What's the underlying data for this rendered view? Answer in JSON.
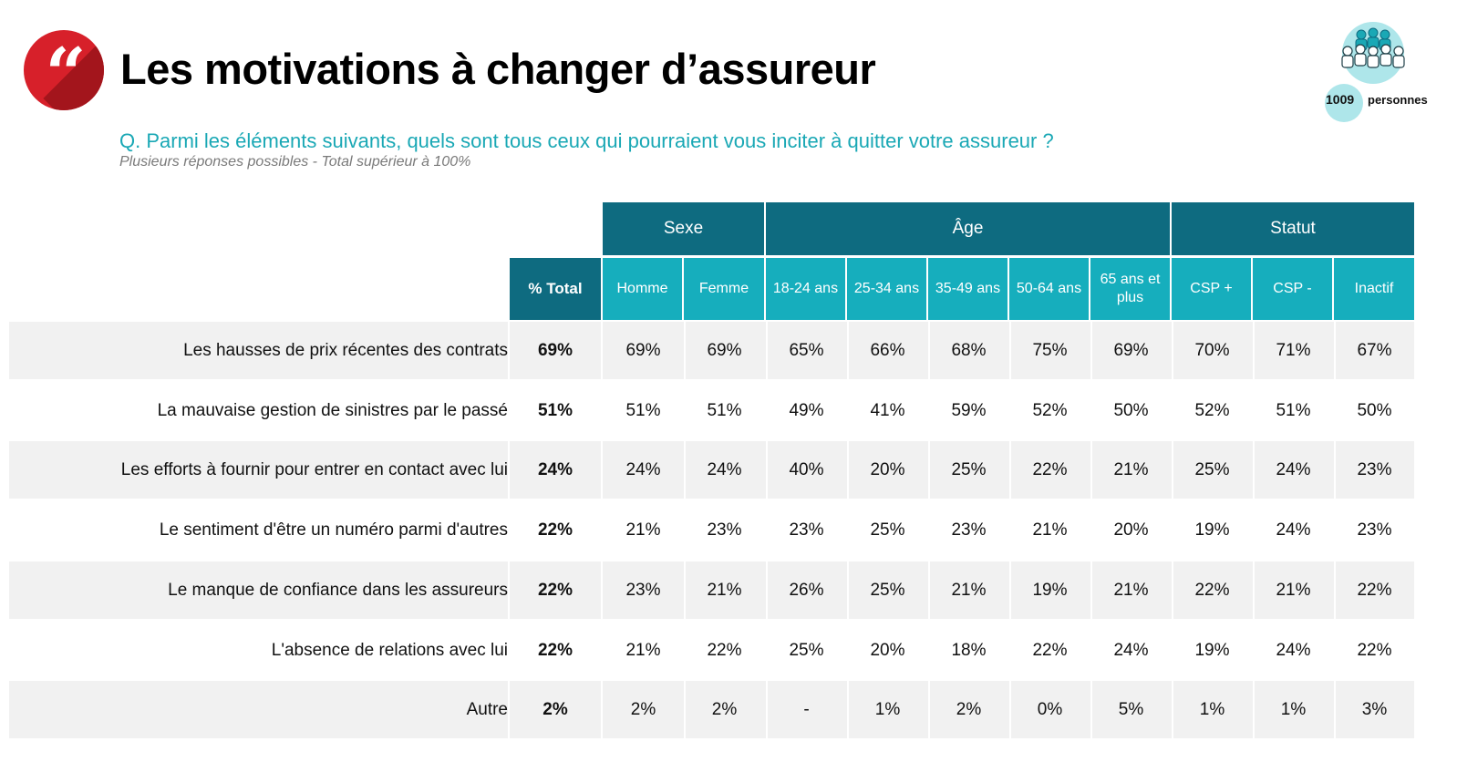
{
  "header": {
    "title": "Les motivations à changer d’assureur",
    "question": "Q. Parmi les éléments suivants, quels sont tous ceux qui pourraient vous inciter à quitter votre assureur ?",
    "note": "Plusieurs réponses possibles - Total supérieur à 100%",
    "sample_count": "1009",
    "sample_unit": "personnes",
    "quote_glyph": "“"
  },
  "colors": {
    "brand_red": "#d7202a",
    "header_dark": "#0e6b80",
    "header_light": "#16aebd",
    "question_text": "#1aa8b5",
    "row_shade": "#f1f1f1"
  },
  "icons": [
    "quote-icon",
    "people-group-icon"
  ],
  "table": {
    "groups": [
      "Sexe",
      "Âge",
      "Statut"
    ],
    "total_label": "% Total",
    "columns": [
      "Homme",
      "Femme",
      "18-24 ans",
      "25-34 ans",
      "35-49 ans",
      "50-64 ans",
      "65 ans et plus",
      "CSP +",
      "CSP -",
      "Inactif"
    ],
    "rows": [
      {
        "label": "Les hausses de prix récentes des contrats",
        "total": "69%",
        "values": [
          "69%",
          "69%",
          "65%",
          "66%",
          "68%",
          "75%",
          "69%",
          "70%",
          "71%",
          "67%"
        ]
      },
      {
        "label": "La mauvaise gestion de sinistres par le passé",
        "total": "51%",
        "values": [
          "51%",
          "51%",
          "49%",
          "41%",
          "59%",
          "52%",
          "50%",
          "52%",
          "51%",
          "50%"
        ]
      },
      {
        "label": "Les efforts à fournir pour entrer en contact avec lui",
        "total": "24%",
        "values": [
          "24%",
          "24%",
          "40%",
          "20%",
          "25%",
          "22%",
          "21%",
          "25%",
          "24%",
          "23%"
        ]
      },
      {
        "label": "Le sentiment d'être un numéro parmi d'autres",
        "total": "22%",
        "values": [
          "21%",
          "23%",
          "23%",
          "25%",
          "23%",
          "21%",
          "20%",
          "19%",
          "24%",
          "23%"
        ]
      },
      {
        "label": "Le manque de confiance dans les assureurs",
        "total": "22%",
        "values": [
          "23%",
          "21%",
          "26%",
          "25%",
          "21%",
          "19%",
          "21%",
          "22%",
          "21%",
          "22%"
        ]
      },
      {
        "label": "L'absence de relations avec lui",
        "total": "22%",
        "values": [
          "21%",
          "22%",
          "25%",
          "20%",
          "18%",
          "22%",
          "24%",
          "19%",
          "24%",
          "22%"
        ]
      },
      {
        "label": "Autre",
        "total": "2%",
        "values": [
          "2%",
          "2%",
          "-",
          "1%",
          "2%",
          "0%",
          "5%",
          "1%",
          "1%",
          "3%"
        ]
      }
    ]
  }
}
